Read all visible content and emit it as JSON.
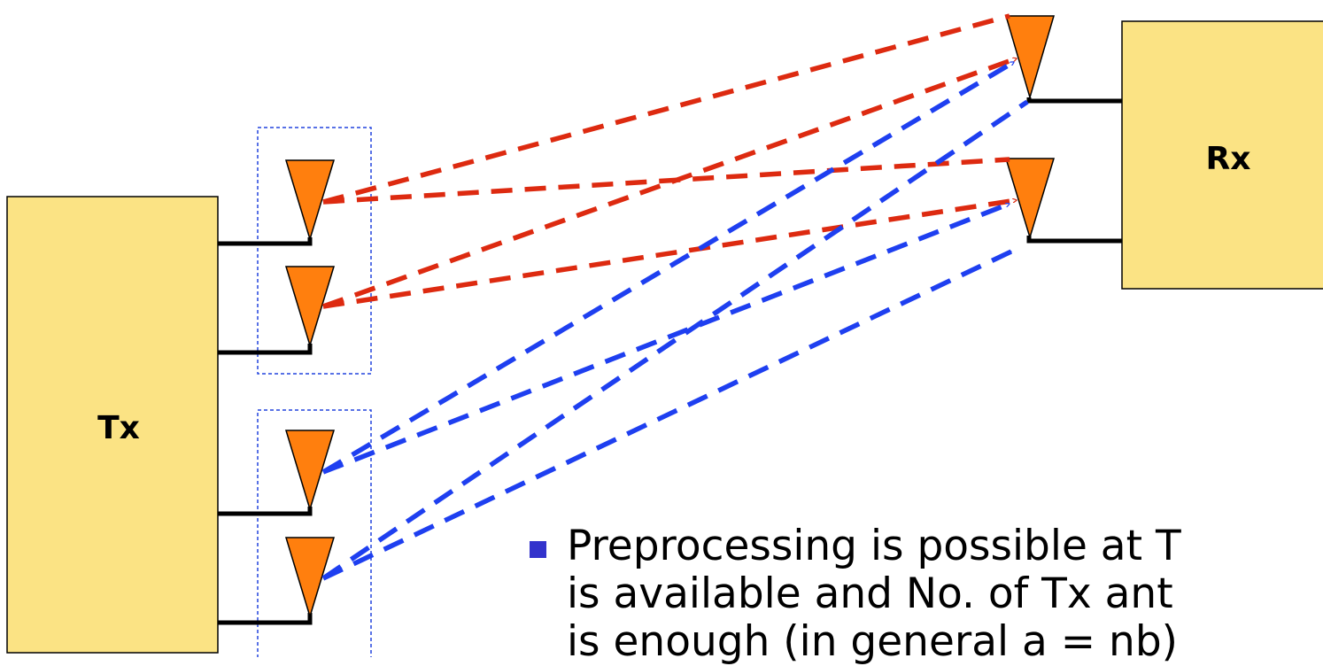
{
  "tx": {
    "label": "Tx"
  },
  "rx": {
    "label": "Rx"
  },
  "colors": {
    "box_fill": "#FBE384",
    "antenna": "#FF7F0E",
    "red_link": "#DD2A10",
    "blue_link": "#1E3FF0",
    "group_border": "#2244DD",
    "bullet": "#3333CC"
  },
  "bullet": {
    "lines": [
      "Preprocessing is possible at T",
      "is available and No. of Tx ant",
      "is enough (in general a = nb)"
    ]
  }
}
